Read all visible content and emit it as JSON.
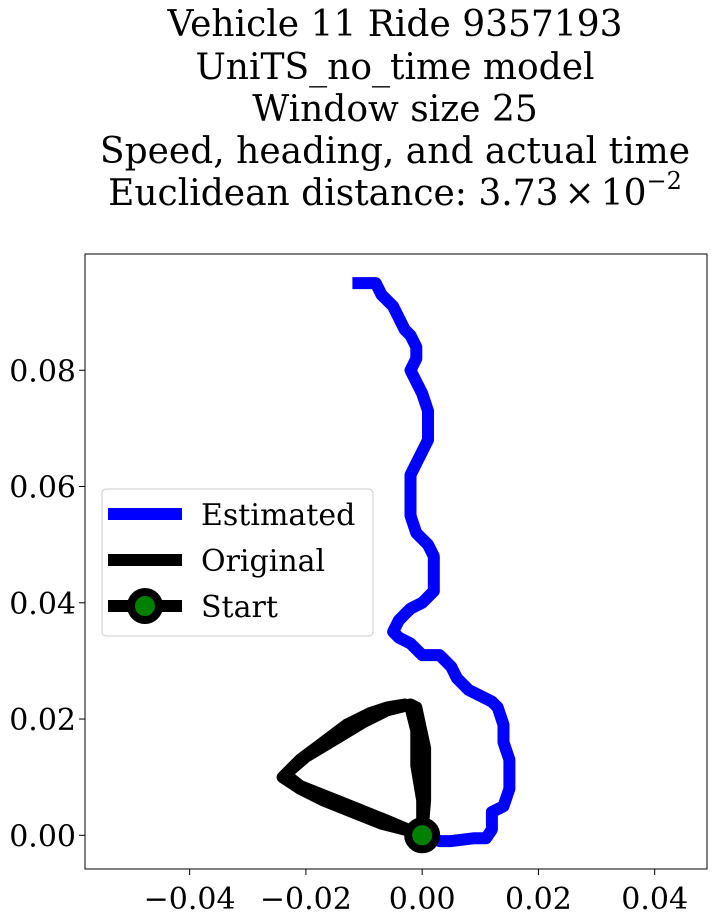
{
  "chart_data": {
    "type": "line",
    "title_lines": [
      "Vehicle 11 Ride 9357193",
      "UniTS_no_time model",
      "Window size 25",
      "Speed, heading, and actual time"
    ],
    "title_last_prefix": "Euclidean distance: ",
    "title_last_mantissa": "3.73",
    "title_last_times": "×",
    "title_last_base": "10",
    "title_last_exponent": "−2",
    "xlim": [
      -0.058,
      0.049
    ],
    "ylim": [
      -0.0058,
      0.1
    ],
    "xticks": [
      -0.04,
      -0.02,
      0.0,
      0.02,
      0.04
    ],
    "xtick_labels": [
      "−0.04",
      "−0.02",
      "0.00",
      "0.02",
      "0.04"
    ],
    "yticks": [
      0.0,
      0.02,
      0.04,
      0.06,
      0.08
    ],
    "ytick_labels": [
      "0.00",
      "0.02",
      "0.04",
      "0.06",
      "0.08"
    ],
    "grid": false,
    "legend_position": "center-left",
    "series": [
      {
        "name": "Estimated",
        "color": "#0000ff",
        "x": [
          0.0,
          0.003,
          0.005,
          0.009,
          0.011,
          0.012,
          0.012,
          0.014,
          0.015,
          0.015,
          0.014,
          0.014,
          0.013,
          0.012,
          0.01,
          0.008,
          0.006,
          0.005,
          0.004,
          0.003,
          0.002,
          0.0,
          -0.002,
          -0.004,
          -0.005,
          -0.004,
          -0.003,
          -0.002,
          0.0,
          0.002,
          0.002,
          0.002,
          0.001,
          -0.001,
          -0.002,
          -0.002,
          -0.002,
          -0.001,
          0.0,
          0.001,
          0.001,
          0.0,
          -0.002,
          -0.001,
          -0.001,
          -0.002,
          -0.003,
          -0.004,
          -0.005,
          -0.007,
          -0.008,
          -0.01,
          -0.012
        ],
        "y": [
          0.0,
          -0.001,
          -0.001,
          -0.0005,
          -0.0005,
          0.001,
          0.004,
          0.005,
          0.008,
          0.013,
          0.016,
          0.019,
          0.022,
          0.023,
          0.024,
          0.025,
          0.027,
          0.029,
          0.03,
          0.031,
          0.031,
          0.031,
          0.033,
          0.034,
          0.035,
          0.037,
          0.038,
          0.039,
          0.04,
          0.042,
          0.045,
          0.048,
          0.05,
          0.052,
          0.055,
          0.058,
          0.062,
          0.064,
          0.066,
          0.068,
          0.073,
          0.076,
          0.08,
          0.082,
          0.084,
          0.086,
          0.087,
          0.089,
          0.091,
          0.093,
          0.095,
          0.095,
          0.095
        ]
      },
      {
        "name": "Original",
        "color": "#000000",
        "x": [
          0.0,
          -0.003,
          -0.007,
          -0.012,
          -0.017,
          -0.021,
          -0.024,
          -0.021,
          -0.017,
          -0.013,
          -0.009,
          -0.006,
          -0.003,
          -0.002,
          -0.001,
          -0.001,
          0.0,
          0.0,
          -0.001,
          -0.002,
          -0.006,
          -0.011,
          -0.016,
          -0.021,
          -0.0235,
          -0.02,
          -0.015,
          -0.01,
          -0.006,
          -0.002,
          -0.001,
          0.0005,
          0.0005,
          0.0
        ],
        "y": [
          0.0,
          0.001,
          0.002,
          0.004,
          0.006,
          0.008,
          0.01,
          0.013,
          0.016,
          0.019,
          0.021,
          0.022,
          0.0225,
          0.022,
          0.018,
          0.012,
          0.006,
          0.0015,
          0.0005,
          0.0008,
          0.0025,
          0.0045,
          0.0065,
          0.0085,
          0.0105,
          0.0135,
          0.0165,
          0.0195,
          0.0215,
          0.0225,
          0.022,
          0.015,
          0.006,
          0.0
        ]
      }
    ],
    "start_point": {
      "x": 0.0,
      "y": 0.0,
      "label": "Start",
      "outer_color": "#000000",
      "inner_color": "#008000"
    },
    "legend_entries": [
      {
        "label": "Estimated",
        "color": "#0000ff",
        "marker": false
      },
      {
        "label": "Original",
        "color": "#000000",
        "marker": false
      },
      {
        "label": "Start",
        "color": "#000000",
        "marker": true,
        "marker_color": "#008000"
      }
    ]
  }
}
